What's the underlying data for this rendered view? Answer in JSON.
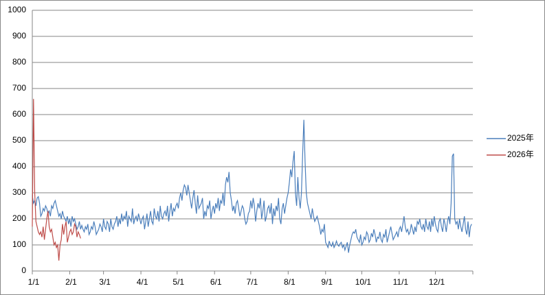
{
  "chart_data": {
    "type": "line",
    "categories": [
      "1/1",
      null,
      null,
      null,
      null,
      null,
      null,
      null,
      null,
      null,
      null,
      null,
      null,
      null,
      null,
      null,
      null,
      null,
      null,
      null,
      null,
      null,
      null,
      null,
      null,
      null,
      null,
      null,
      null,
      null,
      null,
      "2/1",
      null,
      null,
      null,
      null,
      null,
      null,
      null,
      null,
      null,
      null,
      null,
      null,
      null,
      null,
      null,
      null,
      null,
      null,
      null,
      null,
      null,
      null,
      null,
      null,
      null,
      null,
      null,
      "3/1",
      null,
      null,
      null,
      null,
      null,
      null,
      null,
      null,
      null,
      null,
      null,
      null,
      null,
      null,
      null,
      null,
      null,
      null,
      null,
      null,
      null,
      null,
      null,
      null,
      null,
      null,
      null,
      null,
      null,
      null,
      "4/1",
      null,
      null,
      null,
      null,
      null,
      null,
      null,
      null,
      null,
      null,
      null,
      null,
      null,
      null,
      null,
      null,
      null,
      null,
      null,
      null,
      null,
      null,
      null,
      null,
      null,
      null,
      null,
      null,
      null,
      "5/1",
      null,
      null,
      null,
      null,
      null,
      null,
      null,
      null,
      null,
      null,
      null,
      null,
      null,
      null,
      null,
      null,
      null,
      null,
      null,
      null,
      null,
      null,
      null,
      null,
      null,
      null,
      null,
      null,
      null,
      null,
      "6/1",
      null,
      null,
      null,
      null,
      null,
      null,
      null,
      null,
      null,
      null,
      null,
      null,
      null,
      null,
      null,
      null,
      null,
      null,
      null,
      null,
      null,
      null,
      null,
      null,
      null,
      null,
      null,
      null,
      null,
      "7/1",
      null,
      null,
      null,
      null,
      null,
      null,
      null,
      null,
      null,
      null,
      null,
      null,
      null,
      null,
      null,
      null,
      null,
      null,
      null,
      null,
      null,
      null,
      null,
      null,
      null,
      null,
      null,
      null,
      null,
      null,
      "8/1",
      null,
      null,
      null,
      null,
      null,
      null,
      null,
      null,
      null,
      null,
      null,
      null,
      null,
      null,
      null,
      null,
      null,
      null,
      null,
      null,
      null,
      null,
      null,
      null,
      null,
      null,
      null,
      null,
      null,
      null,
      "9/1",
      null,
      null,
      null,
      null,
      null,
      null,
      null,
      null,
      null,
      null,
      null,
      null,
      null,
      null,
      null,
      null,
      null,
      null,
      null,
      null,
      null,
      null,
      null,
      null,
      null,
      null,
      null,
      null,
      null,
      "10/1",
      null,
      null,
      null,
      null,
      null,
      null,
      null,
      null,
      null,
      null,
      null,
      null,
      null,
      null,
      null,
      null,
      null,
      null,
      null,
      null,
      null,
      null,
      null,
      null,
      null,
      null,
      null,
      null,
      null,
      null,
      "11/1",
      null,
      null,
      null,
      null,
      null,
      null,
      null,
      null,
      null,
      null,
      null,
      null,
      null,
      null,
      null,
      null,
      null,
      null,
      null,
      null,
      null,
      null,
      null,
      null,
      null,
      null,
      null,
      null,
      null,
      "12/1",
      null,
      null,
      null,
      null,
      null,
      null,
      null,
      null,
      null,
      null,
      null,
      null,
      null,
      null,
      null,
      null,
      null,
      null,
      null,
      null,
      null,
      null,
      null,
      null,
      null,
      null,
      null,
      null,
      null,
      null
    ],
    "series": [
      {
        "name": "2025年",
        "color": "#4a7ebb",
        "values": [
          290,
          260,
          270,
          250,
          280,
          285,
          260,
          210,
          220,
          240,
          230,
          250,
          240,
          220,
          230,
          210,
          250,
          240,
          260,
          270,
          250,
          230,
          210,
          220,
          200,
          230,
          210,
          200,
          190,
          210,
          180,
          200,
          170,
          210,
          190,
          200,
          180,
          160,
          170,
          190,
          160,
          175,
          160,
          150,
          170,
          160,
          180,
          140,
          150,
          170,
          160,
          190,
          170,
          140,
          150,
          160,
          180,
          170,
          150,
          200,
          170,
          160,
          190,
          180,
          150,
          200,
          170,
          160,
          180,
          190,
          210,
          170,
          200,
          180,
          220,
          190,
          210,
          200,
          230,
          170,
          210,
          200,
          190,
          240,
          180,
          200,
          210,
          190,
          220,
          200,
          180,
          200,
          210,
          160,
          190,
          220,
          170,
          200,
          230,
          190,
          180,
          240,
          210,
          200,
          230,
          190,
          250,
          210,
          200,
          220,
          230,
          210,
          250,
          190,
          230,
          260,
          210,
          240,
          230,
          250,
          260,
          240,
          280,
          300,
          270,
          310,
          330,
          320,
          290,
          330,
          300,
          270,
          240,
          280,
          310,
          260,
          220,
          290,
          240,
          250,
          260,
          280,
          200,
          230,
          210,
          250,
          240,
          270,
          200,
          230,
          250,
          220,
          260,
          240,
          280,
          230,
          270,
          260,
          300,
          250,
          330,
          360,
          340,
          380,
          300,
          270,
          230,
          250,
          220,
          260,
          270,
          240,
          210,
          230,
          250,
          240,
          200,
          180,
          190,
          220,
          230,
          270,
          240,
          280,
          250,
          190,
          230,
          260,
          240,
          280,
          200,
          230,
          270,
          190,
          210,
          240,
          250,
          220,
          260,
          180,
          240,
          210,
          250,
          230,
          280,
          200,
          180,
          240,
          260,
          220,
          250,
          280,
          300,
          340,
          390,
          360,
          420,
          460,
          300,
          250,
          360,
          280,
          240,
          300,
          450,
          580,
          420,
          300,
          260,
          240,
          220,
          200,
          240,
          210,
          190,
          200,
          210,
          190,
          170,
          140,
          160,
          150,
          180,
          110,
          100,
          90,
          115,
          100,
          95,
          110,
          90,
          100,
          115,
          100,
          95,
          105,
          110,
          90,
          100,
          80,
          95,
          110,
          70,
          100,
          120,
          140,
          150,
          145,
          160,
          130,
          120,
          110,
          140,
          100,
          110,
          130,
          120,
          150,
          140,
          110,
          120,
          145,
          130,
          160,
          140,
          110,
          130,
          125,
          150,
          120,
          110,
          140,
          130,
          160,
          110,
          130,
          150,
          170,
          145,
          120,
          130,
          140,
          150,
          130,
          160,
          170,
          150,
          180,
          210,
          170,
          150,
          160,
          140,
          150,
          180,
          160,
          140,
          170,
          150,
          190,
          180,
          200,
          170,
          160,
          180,
          150,
          200,
          170,
          160,
          190,
          150,
          200,
          170,
          210,
          180,
          160,
          150,
          190,
          200,
          170,
          150,
          200,
          180,
          150,
          190,
          210,
          180,
          260,
          440,
          450,
          200,
          180,
          190,
          160,
          200,
          170,
          150,
          180,
          210,
          160,
          140,
          190,
          130,
          170,
          180
        ]
      },
      {
        "name": "2026年",
        "color": "#be4b48",
        "values": [
          170,
          660,
          300,
          190,
          170,
          150,
          140,
          150,
          130,
          170,
          120,
          160,
          200,
          230,
          170,
          150,
          160,
          130,
          100,
          110,
          90,
          100,
          40,
          100,
          120,
          180,
          140,
          170,
          190,
          110,
          130,
          150,
          160,
          140,
          150,
          180,
          170,
          130,
          150,
          140,
          125,
          null,
          null,
          null,
          null,
          null,
          null,
          null,
          null,
          null,
          null,
          null,
          null,
          null,
          null,
          null,
          null,
          null,
          null,
          null,
          null,
          null,
          null,
          null,
          null,
          null,
          null,
          null,
          null,
          null,
          null,
          null,
          null,
          null,
          null,
          null,
          null,
          null,
          null,
          null,
          null,
          null,
          null,
          null,
          null,
          null,
          null,
          null,
          null,
          null,
          null,
          null,
          null,
          null,
          null,
          null,
          null,
          null,
          null,
          null,
          null,
          null,
          null,
          null,
          null,
          null,
          null,
          null,
          null,
          null,
          null,
          null,
          null,
          null,
          null,
          null,
          null,
          null,
          null,
          null,
          null,
          null,
          null,
          null,
          null,
          null,
          null,
          null,
          null,
          null,
          null,
          null,
          null,
          null,
          null,
          null,
          null,
          null,
          null,
          null,
          null,
          null,
          null,
          null,
          null,
          null,
          null,
          null,
          null,
          null,
          null,
          null,
          null,
          null,
          null,
          null,
          null,
          null,
          null,
          null,
          null,
          null,
          null,
          null,
          null,
          null,
          null,
          null,
          null,
          null,
          null,
          null,
          null,
          null,
          null,
          null,
          null,
          null,
          null,
          null,
          null,
          null,
          null,
          null,
          null,
          null,
          null,
          null,
          null,
          null,
          null,
          null,
          null,
          null,
          null,
          null,
          null,
          null,
          null,
          null,
          null,
          null,
          null,
          null,
          null,
          null,
          null,
          null,
          null,
          null,
          null,
          null,
          null,
          null,
          null,
          null,
          null,
          null,
          null,
          null,
          null,
          null,
          null,
          null,
          null,
          null,
          null,
          null,
          null,
          null,
          null,
          null,
          null,
          null,
          null,
          null,
          null,
          null,
          null,
          null,
          null,
          null,
          null,
          null,
          null,
          null,
          null,
          null,
          null,
          null,
          null,
          null,
          null,
          null,
          null,
          null,
          null,
          null,
          null,
          null,
          null,
          null,
          null,
          null,
          null,
          null,
          null,
          null,
          null,
          null,
          null,
          null,
          null,
          null,
          null,
          null,
          null,
          null,
          null,
          null,
          null,
          null,
          null,
          null,
          null,
          null,
          null,
          null,
          null,
          null,
          null,
          null,
          null,
          null,
          null,
          null,
          null,
          null,
          null,
          null,
          null,
          null,
          null,
          null,
          null,
          null,
          null,
          null,
          null,
          null,
          null,
          null,
          null,
          null,
          null,
          null,
          null,
          null,
          null,
          null,
          null,
          null,
          null,
          null,
          null,
          null,
          null,
          null,
          null,
          null,
          null,
          null,
          null,
          null,
          null,
          null,
          null,
          null,
          null,
          null,
          null,
          null,
          null,
          null,
          null,
          null,
          null,
          null,
          null,
          null,
          null,
          null,
          null,
          null,
          null,
          null,
          null,
          null,
          null,
          null,
          null,
          null,
          null,
          null,
          null
        ]
      }
    ],
    "ylim": [
      0,
      1000
    ],
    "yticks": [
      0,
      100,
      200,
      300,
      400,
      500,
      600,
      700,
      800,
      900,
      1000
    ],
    "grid": true,
    "legend": "right"
  }
}
